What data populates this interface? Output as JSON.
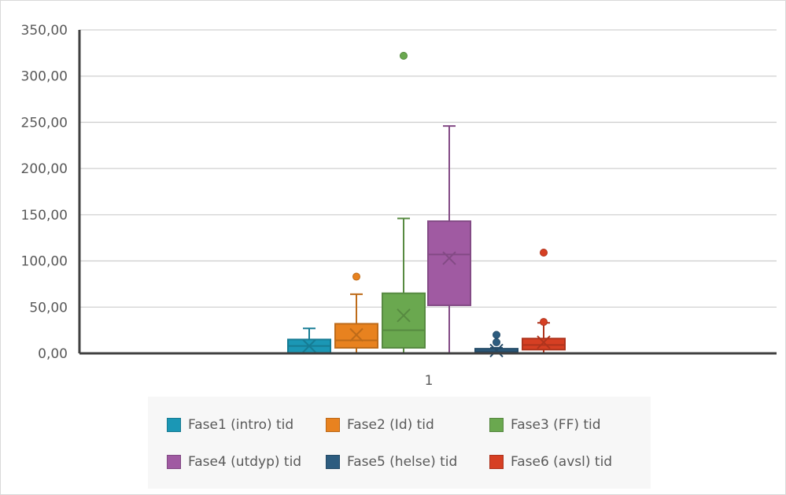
{
  "chart_data": {
    "type": "boxplot",
    "categories": [
      "1"
    ],
    "y_axis": {
      "ylim": [
        0,
        350
      ],
      "ticks": [
        "0,00",
        "50,00",
        "100,00",
        "150,00",
        "200,00",
        "250,00",
        "300,00",
        "350,00"
      ],
      "tick_values": [
        0,
        50,
        100,
        150,
        200,
        250,
        300,
        350
      ],
      "grid": true
    },
    "legend_position": "bottom",
    "series": [
      {
        "name": "Fase1 (intro) tid",
        "color": "#1b97b5",
        "min": 0,
        "q1": 0,
        "median": 8,
        "q3": 15,
        "max": 27,
        "mean": 8,
        "outliers": []
      },
      {
        "name": "Fase2 (Id) tid",
        "color": "#e8821f",
        "min": 0,
        "q1": 6,
        "median": 14,
        "q3": 32,
        "max": 64,
        "mean": 20,
        "outliers": [
          83
        ]
      },
      {
        "name": "Fase3 (FF) tid",
        "color": "#6aa84f",
        "min": 0,
        "q1": 6,
        "median": 25,
        "q3": 65,
        "max": 146,
        "mean": 41,
        "outliers": [
          322
        ]
      },
      {
        "name": "Fase4 (utdyp) tid",
        "color": "#a05aa2",
        "min": 0,
        "q1": 52,
        "median": 107,
        "q3": 143,
        "max": 246,
        "mean": 103,
        "outliers": []
      },
      {
        "name": "Fase5 (helse) tid",
        "color": "#2d5c7f",
        "min": 0,
        "q1": 0,
        "median": 2,
        "q3": 5,
        "max": 6,
        "mean": 3,
        "outliers": [
          12,
          20
        ]
      },
      {
        "name": "Fase6 (avsl) tid",
        "color": "#d63f23",
        "min": 0,
        "q1": 4,
        "median": 9,
        "q3": 16,
        "max": 33,
        "mean": 12,
        "outliers": [
          34,
          109
        ]
      }
    ]
  }
}
